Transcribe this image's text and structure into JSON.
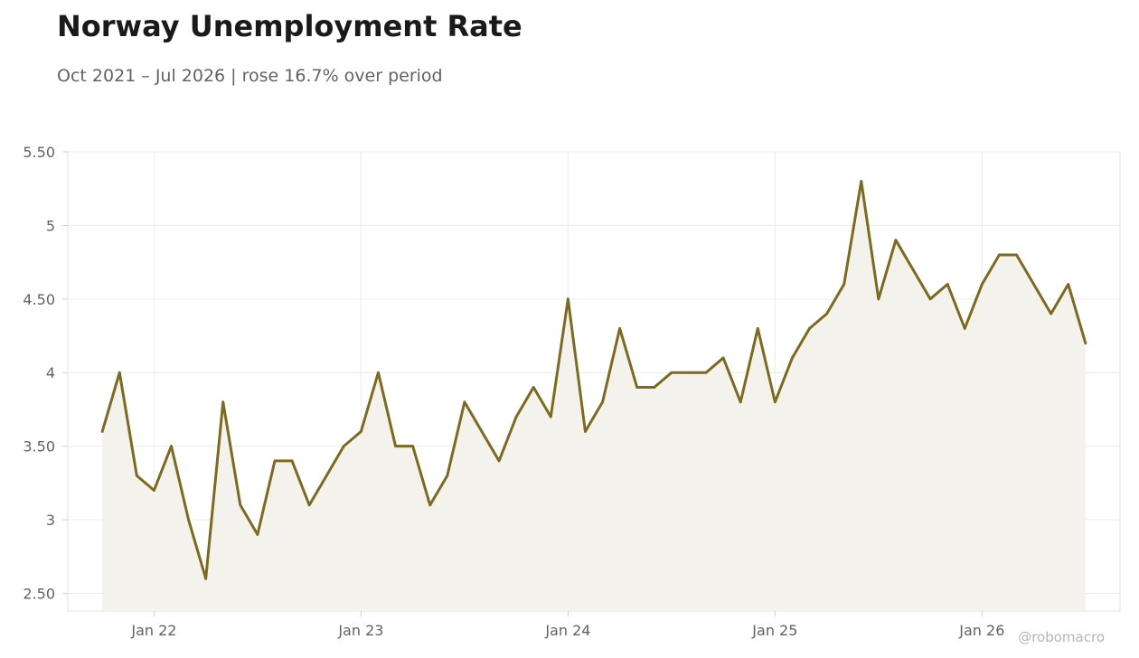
{
  "title": "Norway Unemployment Rate",
  "subtitle": "Oct 2021 – Jul 2026 | rose 16.7% over period",
  "credit": "@robomacro",
  "colors": {
    "line": "#7d6a1f",
    "fill": "#f4f2ec",
    "grid": "#ececec",
    "frame": "#e3e3e3"
  },
  "chart_data": {
    "type": "line",
    "title": "Norway Unemployment Rate",
    "xlabel": "",
    "ylabel": "",
    "grid": true,
    "y_ticks": [
      2.5,
      3,
      3.5,
      4,
      4.5,
      5,
      5.5
    ],
    "y_tick_labels": [
      "2.50",
      "3",
      "3.50",
      "4",
      "4.50",
      "5",
      "5.50"
    ],
    "ylim": [
      2.38,
      5.5
    ],
    "xlim": [
      "2021-08",
      "2026-09"
    ],
    "x_ticks": [
      "2022-01",
      "2023-01",
      "2024-01",
      "2025-01",
      "2026-01"
    ],
    "x_tick_labels": [
      "Jan 22",
      "Jan 23",
      "Jan 24",
      "Jan 25",
      "Jan 26"
    ],
    "series": [
      {
        "x": [
          "2021-10",
          "2021-11",
          "2021-12",
          "2022-01",
          "2022-02",
          "2022-03",
          "2022-04",
          "2022-05",
          "2022-06",
          "2022-07",
          "2022-08",
          "2022-09",
          "2022-10",
          "2022-11",
          "2022-12",
          "2023-01",
          "2023-02",
          "2023-03",
          "2023-04",
          "2023-05",
          "2023-06",
          "2023-07",
          "2023-08",
          "2023-09",
          "2023-10",
          "2023-11",
          "2023-12",
          "2024-01",
          "2024-02",
          "2024-03",
          "2024-04",
          "2024-05",
          "2024-06",
          "2024-07",
          "2024-08",
          "2024-09",
          "2024-10",
          "2024-11",
          "2024-12",
          "2025-01",
          "2025-02",
          "2025-03",
          "2025-04",
          "2025-05",
          "2025-06",
          "2025-07",
          "2025-08",
          "2025-09",
          "2025-10",
          "2025-11",
          "2025-12",
          "2026-01",
          "2026-02",
          "2026-03",
          "2026-04",
          "2026-05",
          "2026-06",
          "2026-07"
        ],
        "values": [
          3.6,
          4.0,
          3.3,
          3.2,
          3.5,
          3.0,
          2.6,
          3.8,
          3.1,
          2.9,
          3.4,
          3.4,
          3.1,
          3.3,
          3.5,
          3.6,
          4.0,
          3.5,
          3.5,
          3.1,
          3.3,
          3.8,
          3.6,
          3.4,
          3.7,
          3.9,
          3.7,
          4.5,
          3.6,
          3.8,
          4.3,
          3.9,
          3.9,
          4.0,
          4.0,
          4.0,
          4.1,
          3.8,
          4.3,
          3.8,
          4.1,
          4.3,
          4.4,
          4.6,
          5.3,
          4.5,
          4.9,
          4.7,
          4.5,
          4.6,
          4.3,
          4.6,
          4.8,
          4.8,
          4.6,
          4.4,
          4.6,
          4.2
        ]
      }
    ]
  }
}
